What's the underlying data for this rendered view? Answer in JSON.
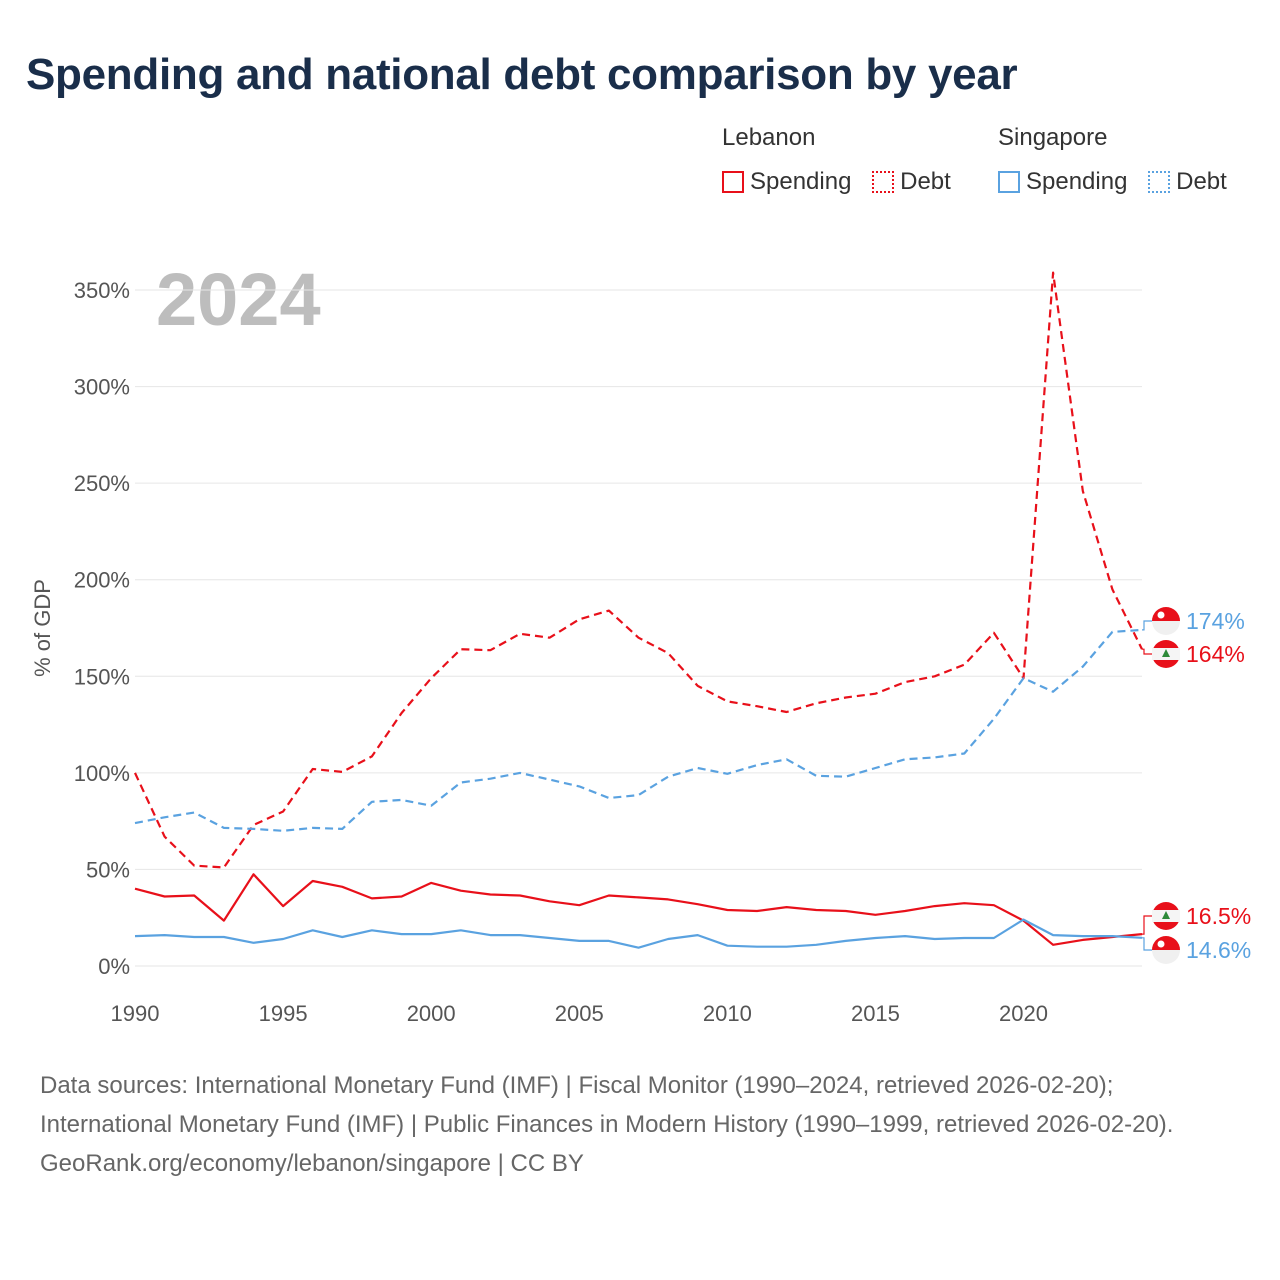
{
  "title": "Spending and national debt comparison by year",
  "colors": {
    "lebanon": "#e8101a",
    "singapore": "#5aa2e0",
    "grid": "#e6e6e6",
    "axis_text": "#555555",
    "year_watermark": "#bdbdbd"
  },
  "legend": {
    "lebanon": {
      "title": "Lebanon",
      "spending": "Spending",
      "debt": "Debt"
    },
    "singapore": {
      "title": "Singapore",
      "spending": "Spending",
      "debt": "Debt"
    }
  },
  "chart_data": {
    "type": "line",
    "title": "Spending and national debt comparison by year",
    "ylabel": "% of GDP",
    "xlabel": "",
    "year_label": "2024",
    "xlim": [
      1990,
      2024
    ],
    "ylim": [
      0,
      360
    ],
    "x_ticks": [
      1990,
      1995,
      2000,
      2005,
      2010,
      2015,
      2020
    ],
    "y_ticks": [
      0,
      50,
      100,
      150,
      200,
      250,
      300,
      350
    ],
    "y_tick_labels": [
      "0%",
      "50%",
      "100%",
      "150%",
      "200%",
      "250%",
      "300%",
      "350%"
    ],
    "x": [
      1990,
      1991,
      1992,
      1993,
      1994,
      1995,
      1996,
      1997,
      1998,
      1999,
      2000,
      2001,
      2002,
      2003,
      2004,
      2005,
      2006,
      2007,
      2008,
      2009,
      2010,
      2011,
      2012,
      2013,
      2014,
      2015,
      2016,
      2017,
      2018,
      2019,
      2020,
      2021,
      2022,
      2023,
      2024
    ],
    "series": [
      {
        "name": "Lebanon Spending",
        "country": "lebanon",
        "style": "solid",
        "values": [
          40,
          36,
          36.5,
          23.5,
          47.5,
          31,
          44,
          41,
          35,
          36,
          43,
          39,
          37,
          36.5,
          33.5,
          31.5,
          36.5,
          35.5,
          34.5,
          32,
          29,
          28.5,
          30.5,
          29,
          28.5,
          26.5,
          28.5,
          31,
          32.5,
          31.5,
          23.5,
          11,
          13.5,
          15,
          16.5
        ],
        "end_label": "16.5%"
      },
      {
        "name": "Lebanon Debt",
        "country": "lebanon",
        "style": "dashed",
        "values": [
          100,
          67,
          52,
          51,
          73,
          80,
          102,
          100.5,
          108.5,
          131,
          149,
          164,
          163.5,
          172,
          170,
          179.5,
          184,
          170,
          162,
          145,
          137,
          134.5,
          131.5,
          136,
          139,
          141,
          147,
          150,
          156,
          172.5,
          149,
          359,
          246,
          195,
          164
        ],
        "end_label": "164%"
      },
      {
        "name": "Singapore Spending",
        "country": "singapore",
        "style": "solid",
        "values": [
          15.5,
          16,
          15,
          15,
          12,
          14,
          18.5,
          15,
          18.5,
          16.5,
          16.5,
          18.5,
          16,
          16,
          14.5,
          13,
          13,
          9.5,
          14,
          16,
          10.5,
          10,
          10,
          11,
          13,
          14.5,
          15.5,
          14,
          14.5,
          14.5,
          24,
          16,
          15.5,
          15.5,
          14.6
        ],
        "end_label": "14.6%"
      },
      {
        "name": "Singapore Debt",
        "country": "singapore",
        "style": "dashed",
        "values": [
          74,
          77,
          79.5,
          71.5,
          71,
          70,
          71.5,
          71,
          85,
          86,
          83,
          95,
          97,
          100,
          96.5,
          93,
          87,
          88.5,
          98,
          102.5,
          99.5,
          104,
          107,
          98.5,
          98,
          102.5,
          107,
          108,
          110,
          128,
          149,
          142,
          155,
          173,
          174
        ],
        "end_label": "174%"
      }
    ]
  },
  "footer": {
    "sources": "Data sources: International Monetary Fund (IMF) | Fiscal Monitor (1990–2024, retrieved 2026-02-20); International Monetary Fund (IMF) | Public Finances in Modern History (1990–1999, retrieved 2026-02-20).",
    "credit": "GeoRank.org/economy/lebanon/singapore | CC BY"
  }
}
